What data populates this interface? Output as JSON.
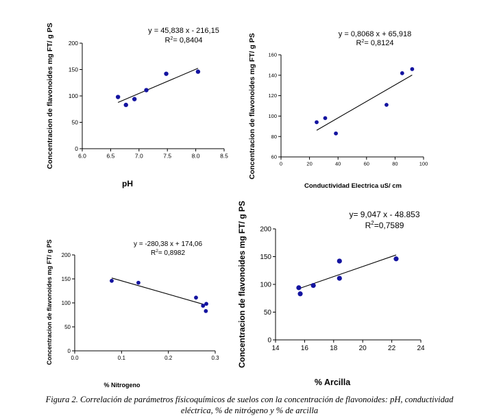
{
  "caption": {
    "line1": "Figura 2. Correlación de parámetros físicoquímicos de suelos con la concentración de flavonoides: pH, conductividad",
    "line2": "eléctrica, % de nitrógeno y % de arcilla"
  },
  "colors": {
    "point": "#1414a0",
    "line": "#000000",
    "axis": "#000000"
  },
  "chart_data": [
    {
      "id": "ph",
      "type": "scatter",
      "xlabel": "pH",
      "ylabel": "Concentracion de flavonoides mg FT/ g PS",
      "xlim": [
        6.0,
        8.5
      ],
      "ylim": [
        0,
        200
      ],
      "xticks": [
        6.0,
        6.5,
        7.0,
        7.5,
        8.0,
        8.5
      ],
      "xtick_labels": [
        "6.0",
        "6.5",
        "7.0",
        "7.5",
        "8.0",
        "8.5"
      ],
      "yticks": [
        0,
        50,
        100,
        150,
        200
      ],
      "ytick_labels": [
        "0",
        "50",
        "100",
        "150",
        "200"
      ],
      "points": [
        {
          "x": 6.63,
          "y": 98
        },
        {
          "x": 6.77,
          "y": 83
        },
        {
          "x": 6.92,
          "y": 94
        },
        {
          "x": 7.13,
          "y": 111
        },
        {
          "x": 7.48,
          "y": 142
        },
        {
          "x": 8.04,
          "y": 146
        }
      ],
      "trendline": {
        "x": [
          6.63,
          8.04
        ],
        "y": [
          87.7,
          152.4
        ]
      },
      "equation": "y = 45,838 x - 216,15",
      "r2_label": "R",
      "r2_value": "= 0,8404"
    },
    {
      "id": "conductividad",
      "type": "scatter",
      "xlabel": "Conductividad Electrica uS/ cm",
      "ylabel": "Concentracion de flavonoides mg FT/ g PS",
      "xlim": [
        0,
        100
      ],
      "ylim": [
        60,
        160
      ],
      "xticks": [
        0,
        20,
        40,
        60,
        80,
        100
      ],
      "xtick_labels": [
        "0",
        "20",
        "40",
        "60",
        "80",
        "100"
      ],
      "yticks": [
        60,
        80,
        100,
        120,
        140,
        160
      ],
      "ytick_labels": [
        "60",
        "80",
        "100",
        "120",
        "140",
        "160"
      ],
      "points": [
        {
          "x": 25,
          "y": 94
        },
        {
          "x": 31,
          "y": 98
        },
        {
          "x": 38.5,
          "y": 83
        },
        {
          "x": 74,
          "y": 111
        },
        {
          "x": 85,
          "y": 142
        },
        {
          "x": 92,
          "y": 146
        }
      ],
      "trendline": {
        "x": [
          25,
          92
        ],
        "y": [
          86.1,
          140.2
        ]
      },
      "equation": "y = 0,8068 x + 65,918",
      "r2_label": "R",
      "r2_value": "= 0,8124"
    },
    {
      "id": "nitrogeno",
      "type": "scatter",
      "xlabel": "% Nitrogeno",
      "ylabel": "Concentracion de flavonoides mg FT/ g PS",
      "xlim": [
        0.0,
        0.3
      ],
      "ylim": [
        0,
        200
      ],
      "xticks": [
        0.0,
        0.1,
        0.2,
        0.3
      ],
      "xtick_labels": [
        "0.0",
        "0.1",
        "0.2",
        "0.3"
      ],
      "yticks": [
        0,
        50,
        100,
        150,
        200
      ],
      "ytick_labels": [
        "0",
        "50",
        "100",
        "150",
        "200"
      ],
      "points": [
        {
          "x": 0.079,
          "y": 146
        },
        {
          "x": 0.136,
          "y": 142
        },
        {
          "x": 0.259,
          "y": 111
        },
        {
          "x": 0.274,
          "y": 94
        },
        {
          "x": 0.281,
          "y": 98
        },
        {
          "x": 0.28,
          "y": 83
        }
      ],
      "trendline": {
        "x": [
          0.079,
          0.281
        ],
        "y": [
          151.9,
          95.3
        ]
      },
      "equation": "y = -280,38 x + 174,06",
      "r2_label": "R",
      "r2_value": "= 0,8982"
    },
    {
      "id": "arcilla",
      "type": "scatter",
      "xlabel": "% Arcilla",
      "ylabel": "Concentracion de flavonoides mg FT/ g PS",
      "xlim": [
        14,
        24
      ],
      "ylim": [
        0,
        200
      ],
      "xticks": [
        14,
        16,
        18,
        20,
        22,
        24
      ],
      "xtick_labels": [
        "14",
        "16",
        "18",
        "20",
        "22",
        "24"
      ],
      "yticks": [
        0,
        50,
        100,
        150,
        200
      ],
      "ytick_labels": [
        "0",
        "50",
        "100",
        "150",
        "200"
      ],
      "points": [
        {
          "x": 15.6,
          "y": 94
        },
        {
          "x": 15.7,
          "y": 83
        },
        {
          "x": 16.6,
          "y": 98
        },
        {
          "x": 18.4,
          "y": 111
        },
        {
          "x": 18.4,
          "y": 142
        },
        {
          "x": 22.3,
          "y": 146
        }
      ],
      "trendline": {
        "x": [
          15.6,
          22.3
        ],
        "y": [
          92.3,
          153.0
        ]
      },
      "equation": "y= 9,047 x - 48.853",
      "r2_label": "R",
      "r2_value": "=0,7589"
    }
  ]
}
